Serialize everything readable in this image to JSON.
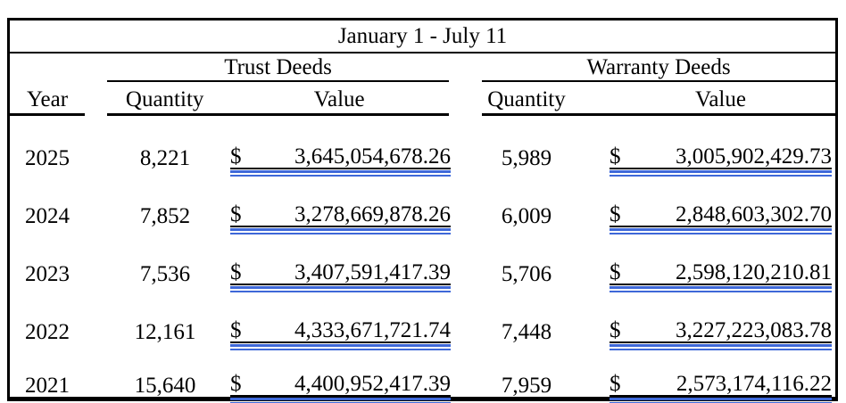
{
  "table": {
    "title": "January 1 - July 11",
    "currency_symbol": "$",
    "groups": {
      "trust": "Trust Deeds",
      "warranty": "Warranty Deeds"
    },
    "columns": {
      "year": "Year",
      "quantity": "Quantity",
      "value": "Value"
    },
    "rows": [
      {
        "year": "2025",
        "trust_quantity": "8,221",
        "trust_value": "3,645,054,678.26",
        "warranty_quantity": "5,989",
        "warranty_value": "3,005,902,429.73"
      },
      {
        "year": "2024",
        "trust_quantity": "7,852",
        "trust_value": "3,278,669,878.26",
        "warranty_quantity": "6,009",
        "warranty_value": "2,848,603,302.70"
      },
      {
        "year": "2023",
        "trust_quantity": "7,536",
        "trust_value": "3,407,591,417.39",
        "warranty_quantity": "5,706",
        "warranty_value": "2,598,120,210.81"
      },
      {
        "year": "2022",
        "trust_quantity": "12,161",
        "trust_value": "4,333,671,721.74",
        "warranty_quantity": "7,448",
        "warranty_value": "3,227,223,083.78"
      },
      {
        "year": "2021",
        "trust_quantity": "15,640",
        "trust_value": "4,400,952,417.39",
        "warranty_quantity": "7,959",
        "warranty_value": "2,573,174,116.22"
      }
    ],
    "colors": {
      "underline_blue": "#3E68D8",
      "border_black": "#000000"
    }
  }
}
